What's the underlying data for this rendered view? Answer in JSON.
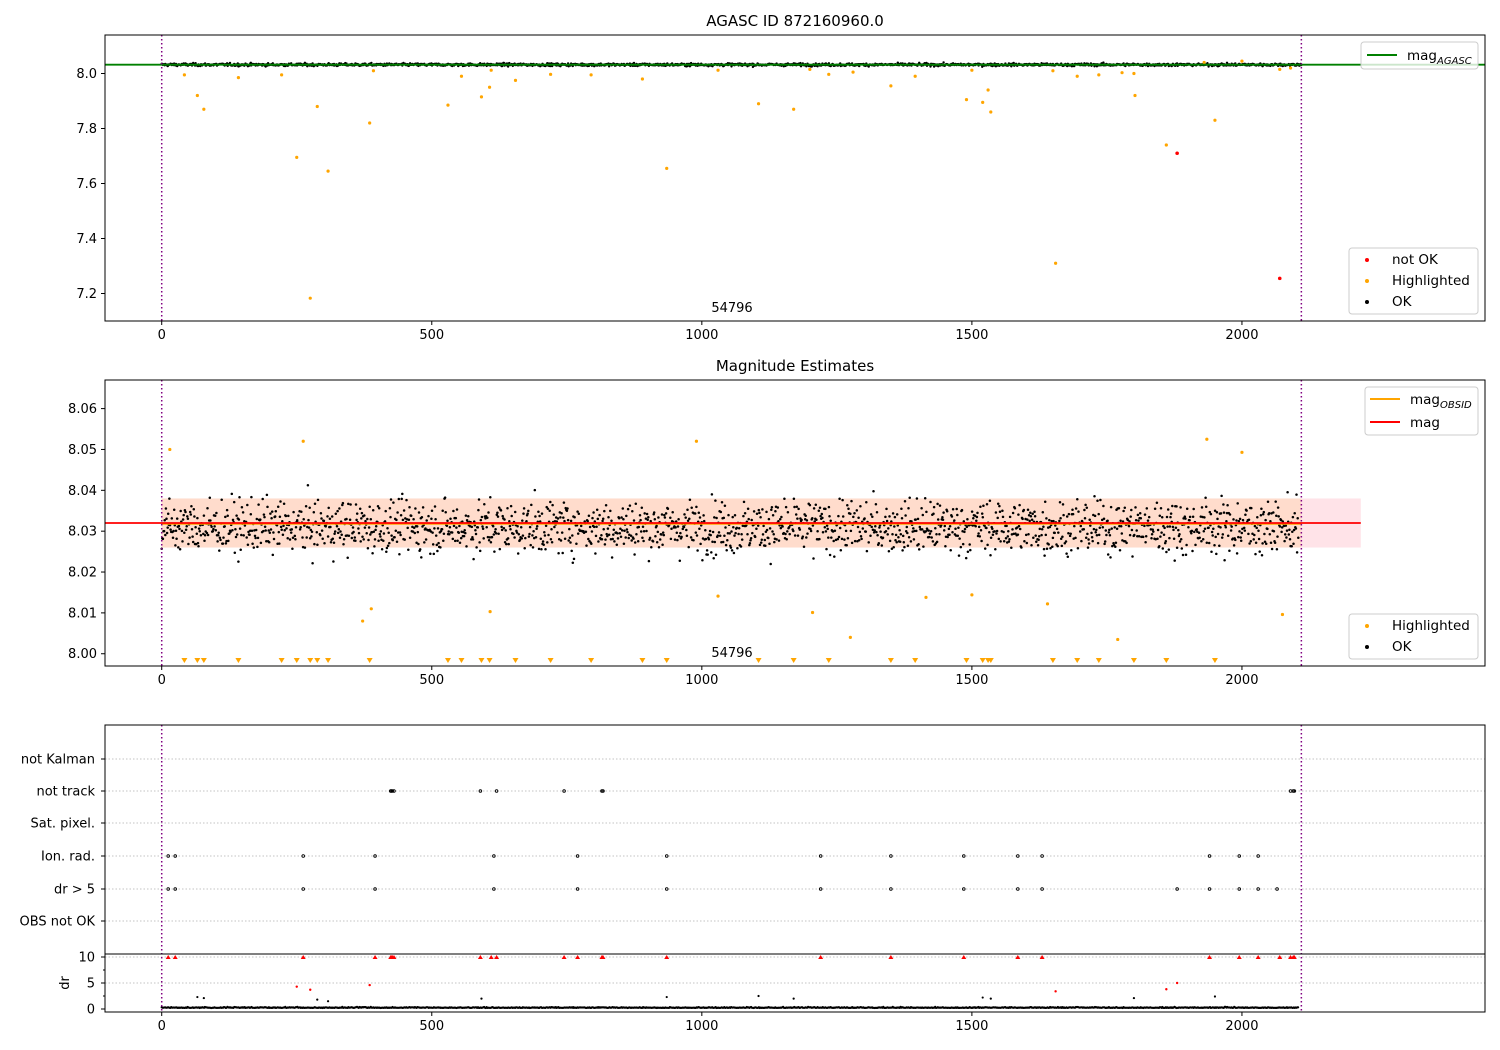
{
  "colors": {
    "ok": "#000000",
    "highlighted": "#ffa500",
    "not_ok": "#ff0000",
    "agasc_line": "#008000",
    "mag_line": "#ff0000",
    "obsid_line": "#ffa500",
    "band_outer": "#ffc0cb",
    "band_inner": "#ffd8c0",
    "boundary": "#800080",
    "grid": "#b0b0b0"
  },
  "chart_data": [
    {
      "type": "scatter",
      "title": "AGASC ID 872160960.0",
      "annotation": "54796",
      "xlim": [
        -105,
        2450
      ],
      "ylim": [
        7.1,
        8.14
      ],
      "xticks": [
        0,
        500,
        1000,
        1500,
        2000
      ],
      "yticks": [
        7.2,
        7.4,
        7.6,
        7.8,
        8.0
      ],
      "ytick_labels": [
        "7.2",
        "7.4",
        "7.6",
        "7.8",
        "8.0"
      ],
      "boundaries": [
        0,
        2110
      ],
      "legend_upper": [
        {
          "label": "mag",
          "sub": "AGASC",
          "kind": "line",
          "color": "#008000"
        }
      ],
      "legend_lower": [
        {
          "label": "not OK",
          "kind": "dot",
          "color": "#ff0000"
        },
        {
          "label": "Highlighted",
          "kind": "dot",
          "color": "#ffa500"
        },
        {
          "label": "OK",
          "kind": "dot",
          "color": "#000000"
        }
      ],
      "mag_agasc": 8.032,
      "band": {
        "x_start": 0,
        "x_end": 2110,
        "center": 8.032,
        "spread": 0.004
      },
      "highlighted": [
        [
          42,
          7.995
        ],
        [
          66,
          7.92
        ],
        [
          78,
          7.87
        ],
        [
          142,
          7.985
        ],
        [
          222,
          7.995
        ],
        [
          250,
          7.695
        ],
        [
          275,
          7.183
        ],
        [
          288,
          7.88
        ],
        [
          308,
          7.645
        ],
        [
          385,
          7.82
        ],
        [
          392,
          8.01
        ],
        [
          530,
          7.885
        ],
        [
          555,
          7.99
        ],
        [
          592,
          7.915
        ],
        [
          607,
          7.95
        ],
        [
          610,
          8.012
        ],
        [
          655,
          7.975
        ],
        [
          720,
          7.997
        ],
        [
          795,
          7.995
        ],
        [
          890,
          7.98
        ],
        [
          935,
          7.655
        ],
        [
          1030,
          8.012
        ],
        [
          1105,
          7.89
        ],
        [
          1170,
          7.87
        ],
        [
          1200,
          8.015
        ],
        [
          1235,
          7.997
        ],
        [
          1280,
          8.005
        ],
        [
          1350,
          7.955
        ],
        [
          1395,
          7.99
        ],
        [
          1490,
          7.905
        ],
        [
          1500,
          8.012
        ],
        [
          1520,
          7.895
        ],
        [
          1530,
          7.94
        ],
        [
          1535,
          7.86
        ],
        [
          1650,
          8.01
        ],
        [
          1655,
          7.31
        ],
        [
          1695,
          7.99
        ],
        [
          1735,
          7.995
        ],
        [
          1778,
          8.003
        ],
        [
          1800,
          8.0
        ],
        [
          1802,
          7.92
        ],
        [
          1860,
          7.74
        ],
        [
          1930,
          8.04
        ],
        [
          1950,
          7.83
        ],
        [
          2000,
          8.045
        ],
        [
          2070,
          8.015
        ],
        [
          2090,
          8.02
        ]
      ],
      "not_ok": [
        [
          1880,
          7.71
        ],
        [
          2070,
          7.255
        ]
      ]
    },
    {
      "type": "scatter",
      "title": "Magnitude Estimates",
      "annotation": "54796",
      "xlim": [
        -105,
        2450
      ],
      "ylim": [
        7.997,
        8.067
      ],
      "xticks": [
        0,
        500,
        1000,
        1500,
        2000
      ],
      "yticks": [
        8.0,
        8.01,
        8.02,
        8.03,
        8.04,
        8.05,
        8.06
      ],
      "ytick_labels": [
        "8.00",
        "8.01",
        "8.02",
        "8.03",
        "8.04",
        "8.05",
        "8.06"
      ],
      "boundaries": [
        0,
        2110
      ],
      "legend_upper": [
        {
          "label": "mag",
          "sub": "OBSID",
          "kind": "line",
          "color": "#ffa500"
        },
        {
          "label": "mag",
          "sub": "",
          "kind": "line",
          "color": "#ff0000"
        }
      ],
      "legend_lower": [
        {
          "label": "Highlighted",
          "kind": "dot",
          "color": "#ffa500"
        },
        {
          "label": "OK",
          "kind": "dot",
          "color": "#000000"
        }
      ],
      "mag": 8.032,
      "mag_obsid": 8.0318,
      "band_outer": {
        "x_start": -105,
        "x_end": 2220,
        "lo": 8.026,
        "hi": 8.038
      },
      "band_inner": {
        "x_start": 0,
        "x_end": 2110,
        "lo": 8.026,
        "hi": 8.038
      },
      "ok_mean": 8.031,
      "ok_spread": 0.0045,
      "highlighted": [
        [
          15,
          8.05
        ],
        [
          262,
          8.052
        ],
        [
          372,
          8.008
        ],
        [
          388,
          8.011
        ],
        [
          608,
          8.0103
        ],
        [
          990,
          8.052
        ],
        [
          1030,
          8.0141
        ],
        [
          1205,
          8.0101
        ],
        [
          1275,
          8.004
        ],
        [
          1415,
          8.0138
        ],
        [
          1500,
          8.0144
        ],
        [
          1640,
          8.0122
        ],
        [
          1770,
          8.0035
        ],
        [
          1935,
          8.0525
        ],
        [
          2000,
          8.0493
        ],
        [
          2075,
          8.0096
        ]
      ],
      "below_markers_x": [
        42,
        66,
        78,
        142,
        222,
        250,
        275,
        288,
        308,
        385,
        530,
        555,
        592,
        607,
        655,
        720,
        795,
        890,
        935,
        1105,
        1170,
        1235,
        1350,
        1395,
        1490,
        1520,
        1530,
        1535,
        1650,
        1695,
        1735,
        1800,
        1860,
        1950
      ]
    },
    {
      "type": "scatter",
      "title": "",
      "xlim": [
        -105,
        2450
      ],
      "xticks": [
        0,
        500,
        1000,
        1500,
        2000
      ],
      "boundaries": [
        0,
        2110
      ],
      "flag_rows": [
        "not Kalman",
        "not track",
        "Sat. pixel.",
        "Ion. rad.",
        "dr > 5",
        "OBS not OK"
      ],
      "flags": {
        "not Kalman": [],
        "not track": [
          424,
          425,
          427,
          430,
          590,
          620,
          745,
          815,
          817,
          2090,
          2095,
          2097
        ],
        "Sat. pixel.": [],
        "Ion. rad.": [
          12,
          25,
          262,
          395,
          615,
          770,
          935,
          1220,
          1350,
          1485,
          1585,
          1630,
          1940,
          1995,
          2030
        ],
        "dr > 5": [
          12,
          25,
          262,
          395,
          615,
          770,
          935,
          1220,
          1350,
          1485,
          1585,
          1630,
          1880,
          1940,
          1995,
          2030,
          2065
        ],
        "OBS not OK": []
      },
      "dr": {
        "ylabel": "dr",
        "ylim": [
          -0.5,
          10.5
        ],
        "yticks": [
          0,
          5,
          10
        ],
        "ytick_labels": [
          "0",
          "5",
          "10"
        ],
        "clipped_x": [
          12,
          25,
          262,
          395,
          424,
          425,
          427,
          430,
          590,
          610,
          620,
          745,
          770,
          815,
          817,
          935,
          1220,
          1350,
          1485,
          1585,
          1630,
          1940,
          1995,
          2030,
          2070,
          2090,
          2095,
          2097
        ],
        "highlight_dr": [
          [
            250,
            4.3
          ],
          [
            275,
            3.7
          ],
          [
            385,
            4.6
          ],
          [
            1655,
            3.4
          ],
          [
            1860,
            3.8
          ],
          [
            1880,
            5.0
          ]
        ],
        "ok_dr": [
          [
            66,
            2.3
          ],
          [
            78,
            2.1
          ],
          [
            288,
            1.8
          ],
          [
            308,
            1.5
          ],
          [
            592,
            2.0
          ],
          [
            935,
            2.3
          ],
          [
            1105,
            2.5
          ],
          [
            1170,
            2.0
          ],
          [
            1520,
            2.2
          ],
          [
            1535,
            2.0
          ],
          [
            1800,
            2.1
          ],
          [
            1950,
            2.4
          ]
        ]
      }
    }
  ]
}
